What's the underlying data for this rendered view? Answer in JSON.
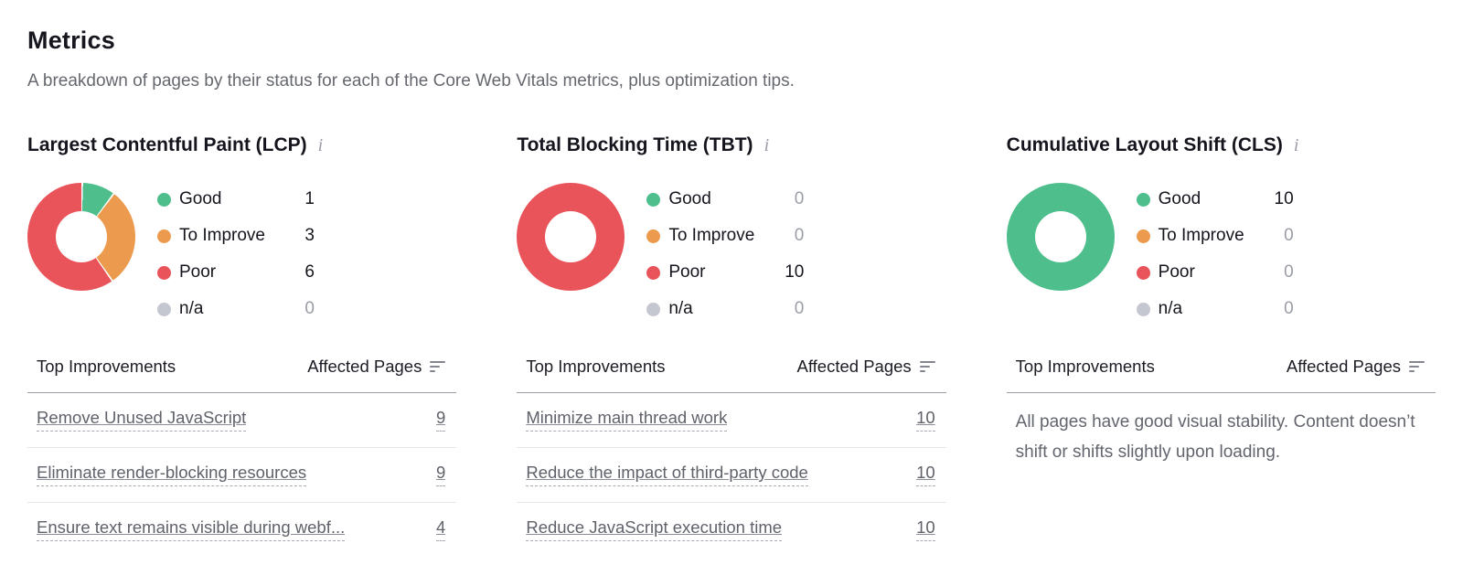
{
  "page": {
    "title": "Metrics",
    "subtitle": "A breakdown of pages by their status for each of the Core Web Vitals metrics, plus optimization tips."
  },
  "table_header": {
    "improvements": "Top Improvements",
    "affected_pages": "Affected Pages"
  },
  "status_colors": {
    "good": "#4DBE8C",
    "to_improve": "#EC9A4D",
    "poor": "#E9545B",
    "na": "#C4C7D0"
  },
  "info_icon_glyph": "i",
  "chart_data": [
    {
      "type": "pie",
      "donut": true,
      "title": "Largest Contentful Paint (LCP)",
      "categories": [
        "Good",
        "To Improve",
        "Poor",
        "n/a"
      ],
      "values": [
        1,
        3,
        6,
        0
      ],
      "colors": [
        "#4DBE8C",
        "#EC9A4D",
        "#E9545B",
        "#C4C7D0"
      ],
      "legend_position": "right"
    },
    {
      "type": "pie",
      "donut": true,
      "title": "Total Blocking Time (TBT)",
      "categories": [
        "Good",
        "To Improve",
        "Poor",
        "n/a"
      ],
      "values": [
        0,
        0,
        10,
        0
      ],
      "colors": [
        "#4DBE8C",
        "#EC9A4D",
        "#E9545B",
        "#C4C7D0"
      ],
      "legend_position": "right"
    },
    {
      "type": "pie",
      "donut": true,
      "title": "Cumulative Layout Shift (CLS)",
      "categories": [
        "Good",
        "To Improve",
        "Poor",
        "n/a"
      ],
      "values": [
        10,
        0,
        0,
        0
      ],
      "colors": [
        "#4DBE8C",
        "#EC9A4D",
        "#E9545B",
        "#C4C7D0"
      ],
      "legend_position": "right"
    }
  ],
  "sections": [
    {
      "title": "Largest Contentful Paint (LCP)",
      "rows": [
        {
          "label": "Remove Unused JavaScript",
          "value": "9"
        },
        {
          "label": "Eliminate render-blocking resources",
          "value": "9"
        },
        {
          "label": "Ensure text remains visible during webf...",
          "value": "4"
        }
      ]
    },
    {
      "title": "Total Blocking Time (TBT)",
      "rows": [
        {
          "label": "Minimize main thread work",
          "value": "10"
        },
        {
          "label": "Reduce the impact of third-party code",
          "value": "10"
        },
        {
          "label": "Reduce JavaScript execution time",
          "value": "10"
        }
      ]
    },
    {
      "title": "Cumulative Layout Shift (CLS)",
      "message": "All pages have good visual stability. Content doesn’t shift or shifts slightly upon loading."
    }
  ]
}
